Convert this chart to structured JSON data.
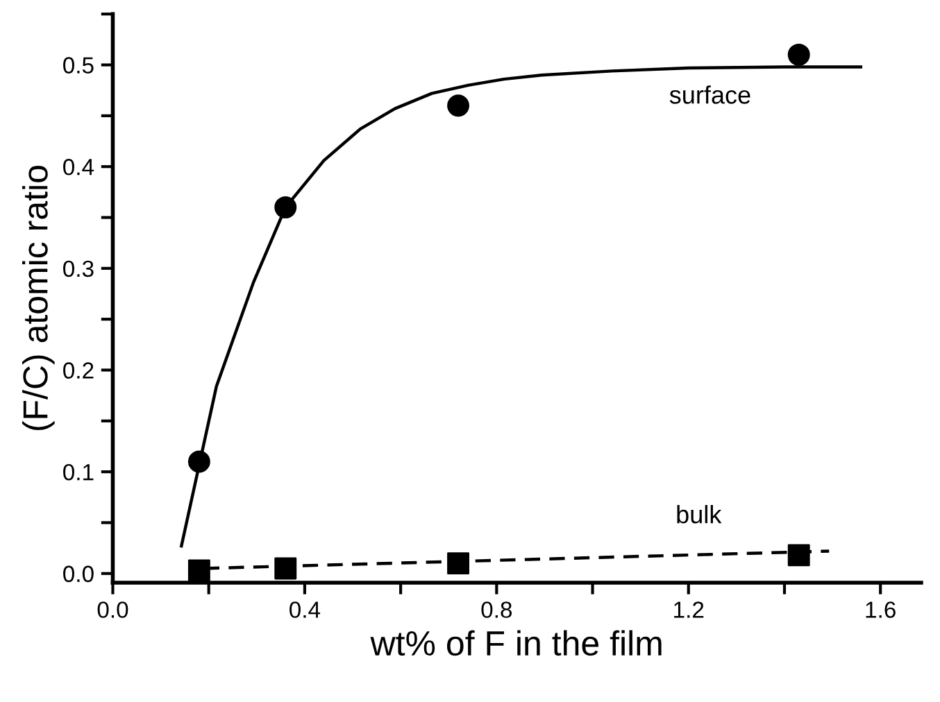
{
  "chart_data": {
    "type": "scatter",
    "xlabel": "wt% of F in the film",
    "ylabel": "(F/C) atomic ratio",
    "xlim": [
      0,
      1.685
    ],
    "ylim": [
      -0.009,
      0.55
    ],
    "xticks": [
      {
        "value": 0,
        "label": "0.0"
      },
      {
        "value": 0.2,
        "label": null
      },
      {
        "value": 0.4,
        "label": "0.4"
      },
      {
        "value": 0.6,
        "label": null
      },
      {
        "value": 0.8,
        "label": "0.8"
      },
      {
        "value": 1.0,
        "label": null
      },
      {
        "value": 1.2,
        "label": "1.2"
      },
      {
        "value": 1.4,
        "label": null
      },
      {
        "value": 1.6,
        "label": "1.6"
      }
    ],
    "yticks": [
      {
        "value": 0,
        "label": "0.0"
      },
      {
        "value": 0.05,
        "label": null
      },
      {
        "value": 0.1,
        "label": "0.1"
      },
      {
        "value": 0.15,
        "label": null
      },
      {
        "value": 0.2,
        "label": "0.2"
      },
      {
        "value": 0.25,
        "label": null
      },
      {
        "value": 0.3,
        "label": "0.3"
      },
      {
        "value": 0.35,
        "label": null
      },
      {
        "value": 0.4,
        "label": "0.4"
      },
      {
        "value": 0.45,
        "label": null
      },
      {
        "value": 0.5,
        "label": "0.5"
      },
      {
        "value": 0.55,
        "label": null
      }
    ],
    "grid": false,
    "legend": false,
    "series": [
      {
        "type": "line",
        "color": "#000000",
        "line_style": "solid",
        "marker": "none",
        "x": [
          0.143,
          0.216,
          0.293,
          0.36,
          0.44,
          0.516,
          0.588,
          0.665,
          0.741,
          0.815,
          0.894,
          1.04,
          1.2,
          1.4,
          1.559
        ],
        "values": [
          0.027,
          0.184,
          0.286,
          0.36,
          0.406,
          0.437,
          0.457,
          0.472,
          0.48,
          0.486,
          0.49,
          0.494,
          0.497,
          0.498,
          0.498
        ]
      },
      {
        "name": "surface",
        "color": "#000000",
        "marker": "circle",
        "x": [
          0.18,
          0.36,
          0.72,
          1.43
        ],
        "values": [
          0.11,
          0.36,
          0.46,
          0.51
        ]
      },
      {
        "type": "line",
        "color": "#000000",
        "line_style": "dashed",
        "marker": "none",
        "x": [
          0.19,
          1.493
        ],
        "values": [
          0.005,
          0.022
        ]
      },
      {
        "name": "bulk",
        "color": "#000000",
        "marker": "square",
        "x": [
          0.18,
          0.36,
          0.72,
          1.43
        ],
        "values": [
          0.003,
          0.005,
          0.01,
          0.018
        ]
      }
    ]
  }
}
